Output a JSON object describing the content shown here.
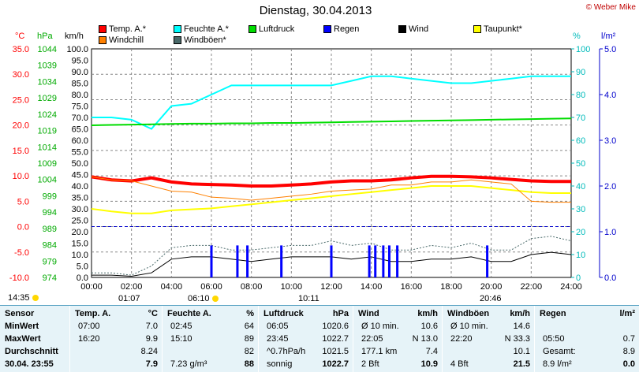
{
  "title": "Dienstag, 30.04.2013",
  "copyright": "© Weber Mike",
  "units": {
    "temp": "°C",
    "press": "hPa",
    "wind": "km/h",
    "hum": "%",
    "rain": "l/m²"
  },
  "legend": [
    {
      "label": "Temp. A.*",
      "color": "#ff0000"
    },
    {
      "label": "Feuchte A.*",
      "color": "#00ffff"
    },
    {
      "label": "Luftdruck",
      "color": "#00dd00"
    },
    {
      "label": "Regen",
      "color": "#0000ff"
    },
    {
      "label": "Wind",
      "color": "#000000"
    },
    {
      "label": "Taupunkt*",
      "color": "#ffff00"
    },
    {
      "label": "Windchill",
      "color": "#ff8000"
    },
    {
      "label": "Windböen*",
      "color": "#4a6a6a"
    }
  ],
  "info": {
    "sunrise": "14:35",
    "marker1": "01:07",
    "marker2": "06:10",
    "marker3": "10:11",
    "marker4": "20:46"
  },
  "chart_data": {
    "type": "line",
    "x_ticks": [
      "00:00",
      "02:00",
      "04:00",
      "06:00",
      "08:00",
      "10:00",
      "12:00",
      "14:00",
      "16:00",
      "18:00",
      "20:00",
      "22:00",
      "24:00"
    ],
    "temp_ticks": [
      "35.0",
      "30.0",
      "25.0",
      "20.0",
      "15.0",
      "10.0",
      "5.0",
      "0.0",
      "-5.0",
      "-10.0"
    ],
    "press_ticks": [
      "1044",
      "1039",
      "1034",
      "1029",
      "1024",
      "1019",
      "1014",
      "1009",
      "1004",
      "999",
      "994",
      "989",
      "984",
      "979",
      "974"
    ],
    "wind_ticks": [
      "100.0",
      "95.0",
      "90.0",
      "85.0",
      "80.0",
      "75.0",
      "70.0",
      "65.0",
      "60.0",
      "55.0",
      "50.0",
      "45.0",
      "40.0",
      "35.0",
      "30.0",
      "25.0",
      "20.0",
      "15.0",
      "10.0",
      "5.0",
      "0.0"
    ],
    "hum_ticks": [
      "100",
      "90",
      "80",
      "70",
      "60",
      "50",
      "40",
      "30",
      "20",
      "10",
      "0"
    ],
    "rain_ticks": [
      "5.0",
      "4.0",
      "3.0",
      "2.0",
      "1.0",
      "0.0"
    ],
    "hours": [
      0,
      1,
      2,
      3,
      4,
      5,
      6,
      7,
      8,
      9,
      10,
      11,
      12,
      13,
      14,
      15,
      16,
      17,
      18,
      19,
      20,
      21,
      22,
      23,
      24
    ],
    "series": [
      {
        "name": "Temp. A.*",
        "color": "#ff0000",
        "axis": "temp",
        "values": [
          9.8,
          9.2,
          9.0,
          9.6,
          8.8,
          8.4,
          8.3,
          8.2,
          8.0,
          8.0,
          8.2,
          8.4,
          8.8,
          9.0,
          9.0,
          9.2,
          9.6,
          9.9,
          9.9,
          9.8,
          9.6,
          9.3,
          9.0,
          8.9,
          8.9
        ]
      },
      {
        "name": "Feuchte A.*",
        "color": "#00ffff",
        "axis": "hum",
        "values": [
          70,
          70,
          69,
          65,
          75,
          76,
          80,
          84,
          84,
          84,
          84,
          84,
          84,
          86,
          88,
          88,
          87,
          86,
          85,
          85,
          86,
          87,
          88,
          88,
          88
        ]
      },
      {
        "name": "Luftdruck",
        "color": "#00dd00",
        "axis": "press",
        "values": [
          1020.6,
          1020.7,
          1020.8,
          1020.9,
          1021.0,
          1021.1,
          1021.1,
          1021.2,
          1021.2,
          1021.3,
          1021.3,
          1021.4,
          1021.5,
          1021.6,
          1021.7,
          1021.8,
          1021.9,
          1022.0,
          1022.1,
          1022.2,
          1022.3,
          1022.4,
          1022.5,
          1022.6,
          1022.7
        ]
      },
      {
        "name": "Taupunkt*",
        "color": "#ffff00",
        "axis": "temp",
        "values": [
          3.5,
          3.0,
          2.6,
          2.6,
          3.2,
          3.4,
          3.6,
          4.0,
          4.4,
          4.8,
          5.2,
          5.6,
          6.0,
          6.4,
          6.8,
          7.2,
          7.6,
          8.0,
          8.0,
          8.0,
          7.6,
          7.2,
          6.8,
          6.6,
          6.6
        ]
      },
      {
        "name": "Windchill",
        "color": "#ff8000",
        "axis": "temp",
        "values": [
          9.8,
          9.2,
          9.0,
          8.0,
          7.0,
          6.8,
          5.8,
          5.6,
          5.2,
          5.6,
          6.0,
          6.4,
          7.0,
          7.2,
          7.4,
          8.2,
          8.2,
          8.8,
          8.8,
          9.2,
          8.8,
          8.4,
          5.0,
          4.8,
          4.8
        ]
      },
      {
        "name": "Wind",
        "color": "#000000",
        "axis": "wind",
        "values": [
          1.0,
          1.0,
          0.5,
          2.0,
          8.0,
          9.0,
          9.0,
          8.0,
          7.0,
          8.0,
          9.0,
          9.0,
          9.0,
          8.0,
          9.0,
          7.0,
          7.0,
          8.0,
          8.0,
          9.0,
          7.0,
          7.0,
          10.0,
          11.0,
          10.0
        ]
      },
      {
        "name": "Windböen*",
        "color": "#4a6a6a",
        "axis": "wind",
        "values": [
          2.0,
          2.0,
          1.0,
          5.0,
          13.0,
          14.0,
          14.0,
          12.0,
          12.0,
          13.0,
          14.0,
          14.0,
          16.0,
          14.0,
          15.0,
          12.0,
          12.0,
          14.0,
          13.0,
          15.0,
          12.0,
          12.0,
          17.0,
          18.0,
          16.0
        ]
      },
      {
        "name": "Regen",
        "color": "#0000ff",
        "axis": "rain",
        "type": "bar",
        "x": [
          6.0,
          7.3,
          7.8,
          9.5,
          12.0,
          13.9,
          14.2,
          14.6,
          14.9,
          15.3,
          19.8
        ],
        "values": [
          0.7,
          0.7,
          0.7,
          0.7,
          0.7,
          0.7,
          0.7,
          0.7,
          0.7,
          0.7,
          0.7
        ]
      }
    ]
  },
  "table": {
    "cols": [
      {
        "name": "sensor",
        "rows": [
          "Sensor",
          "MinWert",
          "MaxWert",
          "Durchschnitt",
          "30.04.  23:55"
        ]
      },
      {
        "name": "temp",
        "head": "Temp. A.",
        "unit": "°C",
        "rows": [
          [
            "07:00",
            "7.0"
          ],
          [
            "16:20",
            "9.9"
          ],
          [
            "",
            "8.24"
          ],
          [
            "",
            "7.9"
          ]
        ]
      },
      {
        "name": "hum",
        "head": "Feuchte A.",
        "unit": "%",
        "rows": [
          [
            "02:45",
            "64"
          ],
          [
            "15:10",
            "89"
          ],
          [
            "",
            "82"
          ],
          [
            "7.23 g/m³",
            "88"
          ]
        ]
      },
      {
        "name": "press",
        "head": "Luftdruck",
        "unit": "hPa",
        "rows": [
          [
            "06:05",
            "1020.6"
          ],
          [
            "23:45",
            "1022.7"
          ],
          [
            "^0.7hPa/h",
            "1021.5"
          ],
          [
            "sonnig",
            "1022.7"
          ]
        ]
      },
      {
        "name": "wind",
        "head": "Wind",
        "unit": "km/h",
        "rows": [
          [
            "Ø 10 min.",
            "10.6"
          ],
          [
            "22:05",
            "N 13.0"
          ],
          [
            "177.1 km",
            "7.4"
          ],
          [
            "2 Bft",
            "10.9"
          ]
        ]
      },
      {
        "name": "gust",
        "head": "Windböen",
        "unit": "km/h",
        "rows": [
          [
            "Ø 10 min.",
            "14.6"
          ],
          [
            "22:20",
            "N 33.3"
          ],
          [
            "",
            "10.1"
          ],
          [
            "4 Bft",
            "21.5"
          ]
        ]
      },
      {
        "name": "rain",
        "head": "Regen",
        "unit": "l/m²",
        "rows": [
          [
            "",
            ""
          ],
          [
            "05:50",
            "0.7"
          ],
          [
            "Gesamt:",
            "8.9"
          ],
          [
            "8.9 l/m²",
            "0.0"
          ]
        ]
      }
    ]
  }
}
